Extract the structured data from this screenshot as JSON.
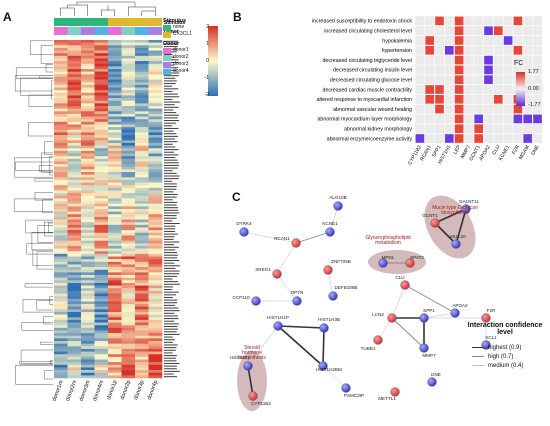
{
  "panels": {
    "a": "A",
    "b": "B",
    "c": "C"
  },
  "heatmap": {
    "annotation_row_labels": [
      "Stimulus",
      "Donor"
    ],
    "stimulus_legend": {
      "title": "Stimulus",
      "items": [
        {
          "label": "none",
          "color": "#2eb67d"
        },
        {
          "label": "CX3CL1",
          "color": "#e0b92a"
        }
      ]
    },
    "donor_legend": {
      "title": "Donor",
      "items": [
        {
          "label": "donor1",
          "color": "#e96dd8"
        },
        {
          "label": "donor2",
          "color": "#7fd1c6"
        },
        {
          "label": "donor3",
          "color": "#a97ee6"
        },
        {
          "label": "donor4",
          "color": "#4fb3e8"
        }
      ]
    },
    "color_scale": {
      "ticks": [
        "2",
        "1",
        "0",
        "-1",
        "-2"
      ],
      "low": "#2f6fb5",
      "mid": "#fdf8c8",
      "high": "#d73027"
    },
    "columns": [
      "donor1m",
      "donor2m",
      "donor3m",
      "donor4m",
      "donor1p",
      "donor2p",
      "donor3p",
      "donor4p"
    ]
  },
  "dotplot": {
    "legend_title": "FC",
    "legend_ticks": [
      "1.77",
      "0.00",
      "-1.77"
    ],
    "rows": [
      "increased susceptibility to endotoxin shock",
      "increased circulating cholesterol level",
      "hypokalemia",
      "hypertension",
      "decreased circulating triglyceride level",
      "decreased circulating insulin level",
      "decreased circulating glucose level",
      "decreased cardiac muscle contractility",
      "altered response to myocardial infarction",
      "abnormal vascular wound healing",
      "abnormal myocardium layer morphology",
      "abnormal kidney morphology",
      "abnormal enzyme/coenzyme activity"
    ],
    "columns": [
      "CYP11B2",
      "RCAN1",
      "SPP1",
      "HIST1H1",
      "LEP",
      "MMP7",
      "GCNT1",
      "APOA2",
      "CLU",
      "KCNE1",
      "F2R",
      "MGAM",
      "DNE"
    ],
    "cells": [
      {
        "r": 0,
        "c": 2,
        "v": 1.2
      },
      {
        "r": 0,
        "c": 4,
        "v": 1.5
      },
      {
        "r": 0,
        "c": 10,
        "v": 1.0
      },
      {
        "r": 1,
        "c": 4,
        "v": 1.3
      },
      {
        "r": 1,
        "c": 7,
        "v": -1.2
      },
      {
        "r": 1,
        "c": 8,
        "v": 1.1
      },
      {
        "r": 2,
        "c": 1,
        "v": 1.0
      },
      {
        "r": 2,
        "c": 4,
        "v": 1.4
      },
      {
        "r": 2,
        "c": 9,
        "v": -1.6
      },
      {
        "r": 3,
        "c": 1,
        "v": 1.1
      },
      {
        "r": 3,
        "c": 3,
        "v": -1.3
      },
      {
        "r": 3,
        "c": 4,
        "v": 1.2
      },
      {
        "r": 3,
        "c": 10,
        "v": 1.0
      },
      {
        "r": 4,
        "c": 4,
        "v": 1.5
      },
      {
        "r": 4,
        "c": 7,
        "v": -1.1
      },
      {
        "r": 5,
        "c": 4,
        "v": 1.6
      },
      {
        "r": 5,
        "c": 7,
        "v": -1.0
      },
      {
        "r": 6,
        "c": 4,
        "v": 1.4
      },
      {
        "r": 6,
        "c": 7,
        "v": -1.2
      },
      {
        "r": 7,
        "c": 1,
        "v": 1.2
      },
      {
        "r": 7,
        "c": 2,
        "v": 1.0
      },
      {
        "r": 7,
        "c": 4,
        "v": 1.3
      },
      {
        "r": 8,
        "c": 1,
        "v": 1.1
      },
      {
        "r": 8,
        "c": 2,
        "v": 1.3
      },
      {
        "r": 8,
        "c": 4,
        "v": 1.2
      },
      {
        "r": 8,
        "c": 8,
        "v": 1.0
      },
      {
        "r": 8,
        "c": 10,
        "v": 1.1
      },
      {
        "r": 9,
        "c": 2,
        "v": 1.2
      },
      {
        "r": 9,
        "c": 4,
        "v": 1.1
      },
      {
        "r": 9,
        "c": 10,
        "v": 1.3
      },
      {
        "r": 10,
        "c": 4,
        "v": 1.3
      },
      {
        "r": 10,
        "c": 6,
        "v": -1.0
      },
      {
        "r": 10,
        "c": 10,
        "v": -1.4
      },
      {
        "r": 10,
        "c": 11,
        "v": -1.2
      },
      {
        "r": 10,
        "c": 12,
        "v": -1.5
      },
      {
        "r": 11,
        "c": 4,
        "v": 1.2
      },
      {
        "r": 11,
        "c": 6,
        "v": 1.0
      },
      {
        "r": 12,
        "c": 0,
        "v": -1.3
      },
      {
        "r": 12,
        "c": 3,
        "v": -1.1
      },
      {
        "r": 12,
        "c": 4,
        "v": 1.4
      },
      {
        "r": 12,
        "c": 6,
        "v": 1.1
      },
      {
        "r": 12,
        "c": 11,
        "v": -1.4
      }
    ]
  },
  "network": {
    "annotations": [
      {
        "id": "muc",
        "text": "Mucin type O-glycan biosynthesis"
      },
      {
        "id": "glycero",
        "text": "Glycerophospholipid metabolism"
      },
      {
        "id": "steroid",
        "text": "Steroid hormone biosynthesis"
      }
    ],
    "nodes": [
      {
        "id": "ALG10B",
        "label": "ALG10B",
        "up": false
      },
      {
        "id": "DYRK4",
        "label": "DYRK4",
        "up": false
      },
      {
        "id": "KCNE1",
        "label": "KCNE1",
        "up": false
      },
      {
        "id": "RCAN1",
        "label": "RCAN1",
        "up": true
      },
      {
        "id": "SREG1",
        "label": "SREG1",
        "up": true
      },
      {
        "id": "ZNF705B",
        "label": "ZNF705B",
        "up": true
      },
      {
        "id": "MPDL",
        "label": "MPDL",
        "up": false
      },
      {
        "id": "SPAT2",
        "label": "SPAT2",
        "up": true
      },
      {
        "id": "GCNT1",
        "label": "GCNT1",
        "up": true
      },
      {
        "id": "GALNT11",
        "label": "GALNT11",
        "up": false
      },
      {
        "id": "MUC20",
        "label": "MUC20",
        "up": false
      },
      {
        "id": "CCP110",
        "label": "CCP110",
        "up": false
      },
      {
        "id": "OPTN",
        "label": "OPTN",
        "up": false
      },
      {
        "id": "DEFB108B",
        "label": "DEFB108B",
        "up": false
      },
      {
        "id": "CLU",
        "label": "CLU",
        "up": true
      },
      {
        "id": "APOA2",
        "label": "APOA2",
        "up": false
      },
      {
        "id": "F2R",
        "label": "F2R",
        "up": true
      },
      {
        "id": "HIST1H1P",
        "label": "HIST1H1P",
        "up": false
      },
      {
        "id": "HIST1H3B",
        "label": "HIST1H3B",
        "up": false
      },
      {
        "id": "LCN2",
        "label": "LCN2",
        "up": true
      },
      {
        "id": "SPP1",
        "label": "SPP1",
        "up": false
      },
      {
        "id": "XCL1",
        "label": "XCL1",
        "up": false
      },
      {
        "id": "HIST1H2BM",
        "label": "HIST1H2BM",
        "up": false
      },
      {
        "id": "HSD11B1",
        "label": "HSD11B1",
        "up": false
      },
      {
        "id": "TUBB1",
        "label": "TUBB1",
        "up": true
      },
      {
        "id": "MMP7",
        "label": "MMP7",
        "up": false
      },
      {
        "id": "PSMC3IP",
        "label": "PSMC3IP",
        "up": false
      },
      {
        "id": "CYP11B2",
        "label": "CYP11B2",
        "up": true
      },
      {
        "id": "DNE",
        "label": "DNE",
        "up": false
      },
      {
        "id": "METTL1",
        "label": "METTL1",
        "up": true
      }
    ],
    "edges": [
      {
        "a": "ALG10B",
        "b": "KCNE1",
        "w": "medium"
      },
      {
        "a": "KCNE1",
        "b": "RCAN1",
        "w": "high"
      },
      {
        "a": "DYRK4",
        "b": "RCAN1",
        "w": "medium"
      },
      {
        "a": "RCAN1",
        "b": "SREG1",
        "w": "medium"
      },
      {
        "a": "SREG1",
        "b": "OPTN",
        "w": "medium"
      },
      {
        "a": "ZNF705B",
        "b": "DEFB108B",
        "w": "medium"
      },
      {
        "a": "MPDL",
        "b": "SPAT2",
        "w": "high"
      },
      {
        "a": "GCNT1",
        "b": "GALNT11",
        "w": "highest"
      },
      {
        "a": "GCNT1",
        "b": "MUC20",
        "w": "highest"
      },
      {
        "a": "GALNT11",
        "b": "MUC20",
        "w": "highest"
      },
      {
        "a": "CCP110",
        "b": "OPTN",
        "w": "medium"
      },
      {
        "a": "CLU",
        "b": "APOA2",
        "w": "high"
      },
      {
        "a": "CLU",
        "b": "LCN2",
        "w": "medium"
      },
      {
        "a": "APOA2",
        "b": "SPP1",
        "w": "medium"
      },
      {
        "a": "LCN2",
        "b": "SPP1",
        "w": "highest"
      },
      {
        "a": "LCN2",
        "b": "MMP7",
        "w": "high"
      },
      {
        "a": "SPP1",
        "b": "MMP7",
        "w": "highest"
      },
      {
        "a": "SPP1",
        "b": "F2R",
        "w": "medium"
      },
      {
        "a": "F2R",
        "b": "XCL1",
        "w": "medium"
      },
      {
        "a": "LCN2",
        "b": "TUBB1",
        "w": "medium"
      },
      {
        "a": "HIST1H1P",
        "b": "HIST1H3B",
        "w": "highest"
      },
      {
        "a": "HIST1H1P",
        "b": "HIST1H2BM",
        "w": "highest"
      },
      {
        "a": "HIST1H3B",
        "b": "HIST1H2BM",
        "w": "highest"
      },
      {
        "a": "HIST1H1P",
        "b": "HSD11B1",
        "w": "medium"
      },
      {
        "a": "HIST1H2BM",
        "b": "PSMC3IP",
        "w": "medium"
      },
      {
        "a": "HSD11B1",
        "b": "CYP11B2",
        "w": "highest"
      }
    ],
    "legend": {
      "title": "Interaction confidence level",
      "items": [
        {
          "label": "highest (0.9)",
          "key": "highest"
        },
        {
          "label": "high (0.7)",
          "key": "high"
        },
        {
          "label": "medium (0.4)",
          "key": "medium"
        }
      ]
    }
  }
}
